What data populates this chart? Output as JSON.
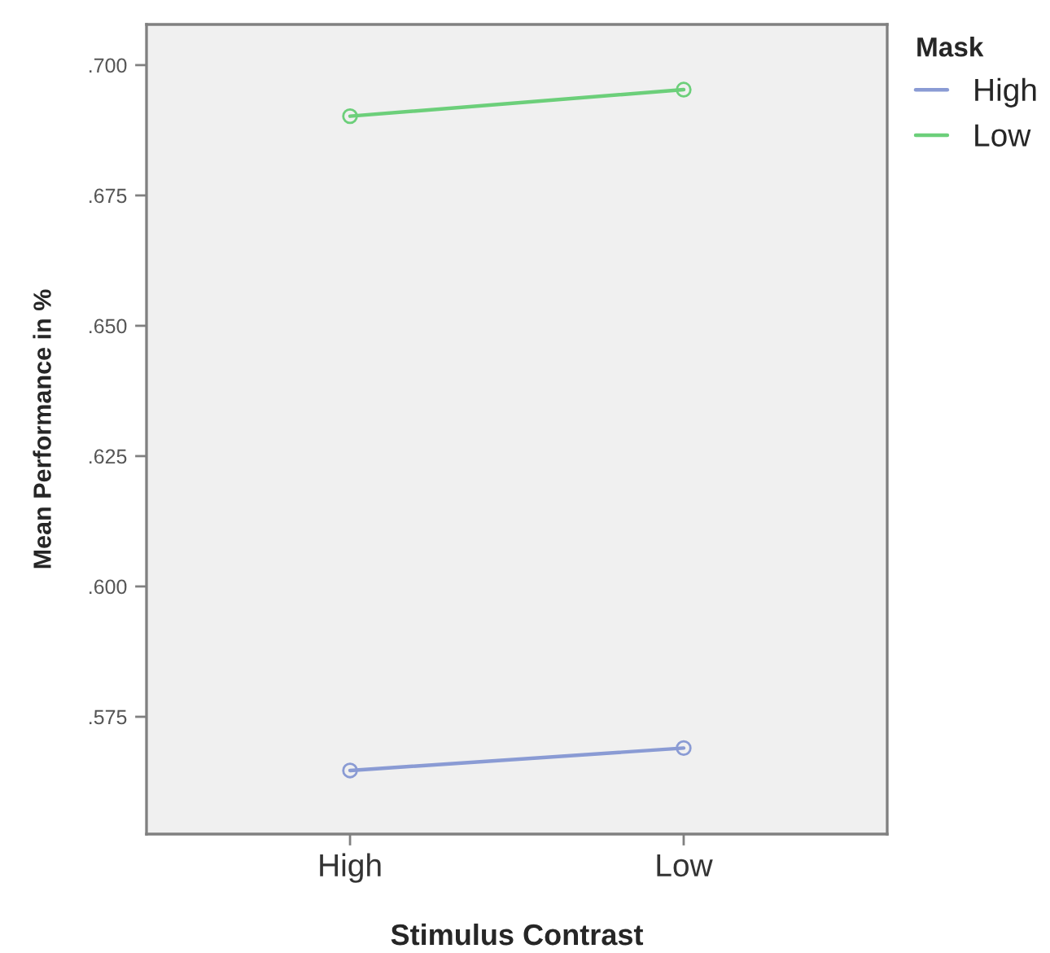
{
  "chart_data": {
    "type": "line",
    "xlabel": "Stimulus Contrast",
    "ylabel": "Mean Performance in %",
    "legend_title": "Mask",
    "categories": [
      "High",
      "Low"
    ],
    "series": [
      {
        "name": "High",
        "color": "#8a9bd4",
        "values": [
          0.5647,
          0.569
        ]
      },
      {
        "name": "Low",
        "color": "#6ccf7a",
        "values": [
          0.6902,
          0.6953
        ]
      }
    ],
    "ylim": [
      0.5525,
      0.7078
    ],
    "yticks": [
      {
        "value": 0.575,
        "label": ".575"
      },
      {
        "value": 0.6,
        "label": ".600"
      },
      {
        "value": 0.625,
        "label": ".625"
      },
      {
        "value": 0.65,
        "label": ".650"
      },
      {
        "value": 0.675,
        "label": ".675"
      },
      {
        "value": 0.7,
        "label": ".700"
      }
    ],
    "marker": "circle",
    "grid": false,
    "legend": "top right"
  }
}
